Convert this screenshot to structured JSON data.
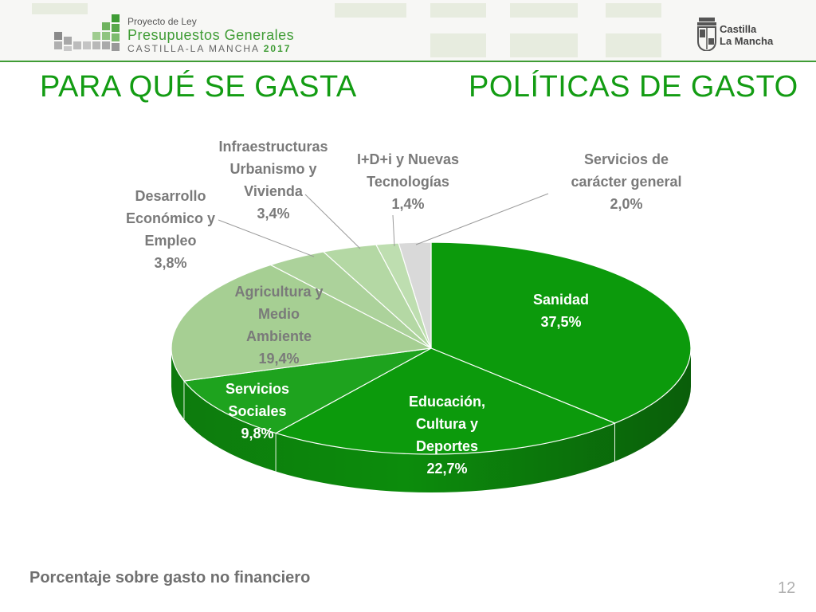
{
  "header": {
    "logo_line1": "Proyecto de Ley",
    "logo_line2": "Presupuestos Generales",
    "logo_line3": "CASTILLA-LA MANCHA",
    "logo_year": "2017",
    "region_line1": "Castilla",
    "region_line2": "La Mancha"
  },
  "title_left": "PARA QUÉ SE GASTA",
  "title_right": "POLÍTICAS DE GASTO",
  "chart_data": {
    "type": "pie",
    "series": [
      {
        "label_lines": [
          "Sanidad"
        ],
        "value_text": "37,5%",
        "value": 37.5,
        "color": "#0c9a0c"
      },
      {
        "label_lines": [
          "Educación,",
          "Cultura y",
          "Deportes"
        ],
        "value_text": "22,7%",
        "value": 22.7,
        "color": "#0c9a0c"
      },
      {
        "label_lines": [
          "Servicios",
          "Sociales"
        ],
        "value_text": "9,8%",
        "value": 9.8,
        "color": "#1ea31e"
      },
      {
        "label_lines": [
          "Agricultura y",
          "Medio",
          "Ambiente"
        ],
        "value_text": "19,4%",
        "value": 19.4,
        "color": "#a6cf93"
      },
      {
        "label_lines": [
          "Desarrollo",
          "Económico y",
          "Empleo"
        ],
        "value_text": "3,8%",
        "value": 3.8,
        "color": "#acd29b"
      },
      {
        "label_lines": [
          "Infraestructuras",
          "Urbanismo y",
          "Vivienda"
        ],
        "value_text": "3,4%",
        "value": 3.4,
        "color": "#b4d8a4"
      },
      {
        "label_lines": [
          "I+D+i y Nuevas",
          "Tecnologías"
        ],
        "value_text": "1,4%",
        "value": 1.4,
        "color": "#bedeb0"
      },
      {
        "label_lines": [
          "Servicios de",
          "carácter general"
        ],
        "value_text": "2,0%",
        "value": 2.0,
        "color": "#d9d9d9"
      }
    ]
  },
  "footer": {
    "note": "Porcentaje sobre gasto no financiero",
    "page_number": "12"
  }
}
